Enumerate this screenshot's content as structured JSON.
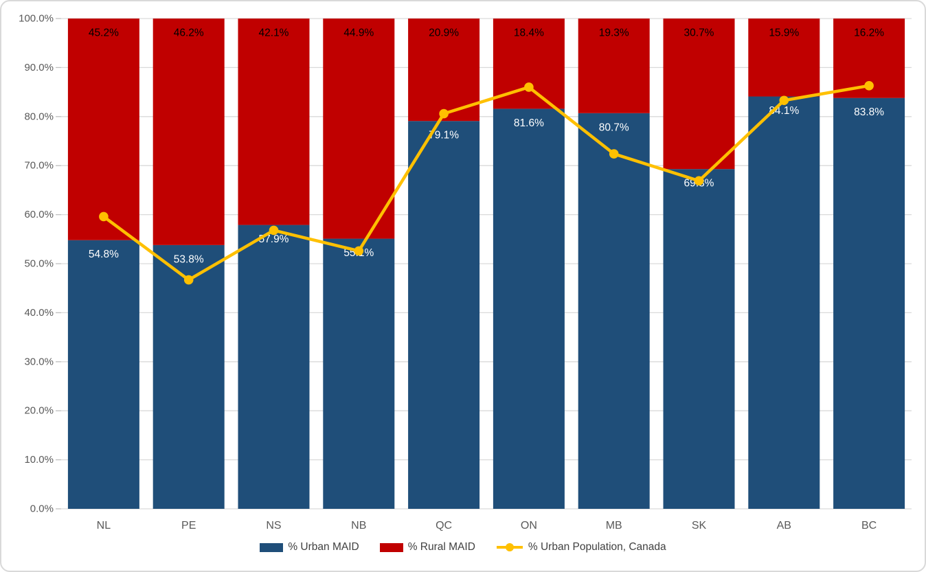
{
  "chart_data": {
    "type": "bar",
    "subtype": "stacked-percent-columns-with-line-overlay",
    "title": "",
    "xlabel": "",
    "ylabel": "",
    "categories": [
      "NL",
      "PE",
      "NS",
      "NB",
      "QC",
      "ON",
      "MB",
      "SK",
      "AB",
      "BC"
    ],
    "series": [
      {
        "name": "% Urban MAID",
        "kind": "bar",
        "color": "#1F4E79",
        "label_color": "#FFFFFF",
        "values": [
          54.8,
          53.8,
          57.9,
          55.1,
          79.1,
          81.6,
          80.7,
          69.3,
          84.1,
          83.8
        ],
        "labels": [
          "54.8%",
          "53.8%",
          "57.9%",
          "55.1%",
          "79.1%",
          "81.6%",
          "80.7%",
          "69.3%",
          "84.1%",
          "83.8%"
        ]
      },
      {
        "name": "% Rural MAID",
        "kind": "bar",
        "color": "#C00000",
        "label_color": "#000000",
        "values": [
          45.2,
          46.2,
          42.1,
          44.9,
          20.9,
          18.4,
          19.3,
          30.7,
          15.9,
          16.2
        ],
        "labels": [
          "45.2%",
          "46.2%",
          "42.1%",
          "44.9%",
          "20.9%",
          "18.4%",
          "19.3%",
          "30.7%",
          "15.9%",
          "16.2%"
        ]
      },
      {
        "name": "% Urban Population, Canada",
        "kind": "line",
        "color": "#FFC000",
        "values": [
          59.6,
          46.7,
          56.8,
          52.6,
          80.6,
          86.0,
          72.4,
          66.9,
          83.3,
          86.3
        ]
      }
    ],
    "ylim": [
      0,
      100
    ],
    "ytick_step": 10,
    "ytick_decimals": 1,
    "ytick_suffix": "%",
    "ytick_labels": [
      "0.0%",
      "10.0%",
      "20.0%",
      "30.0%",
      "40.0%",
      "50.0%",
      "60.0%",
      "70.0%",
      "80.0%",
      "90.0%",
      "100.0%"
    ],
    "grid": true,
    "legend_position": "bottom",
    "colors": {
      "background": "#FFFFFF",
      "border": "#D9D9D9",
      "grid": "#D9D9D9",
      "tick": "#BFBFBF",
      "axis_text": "#595959",
      "legend_text": "#404040"
    }
  }
}
